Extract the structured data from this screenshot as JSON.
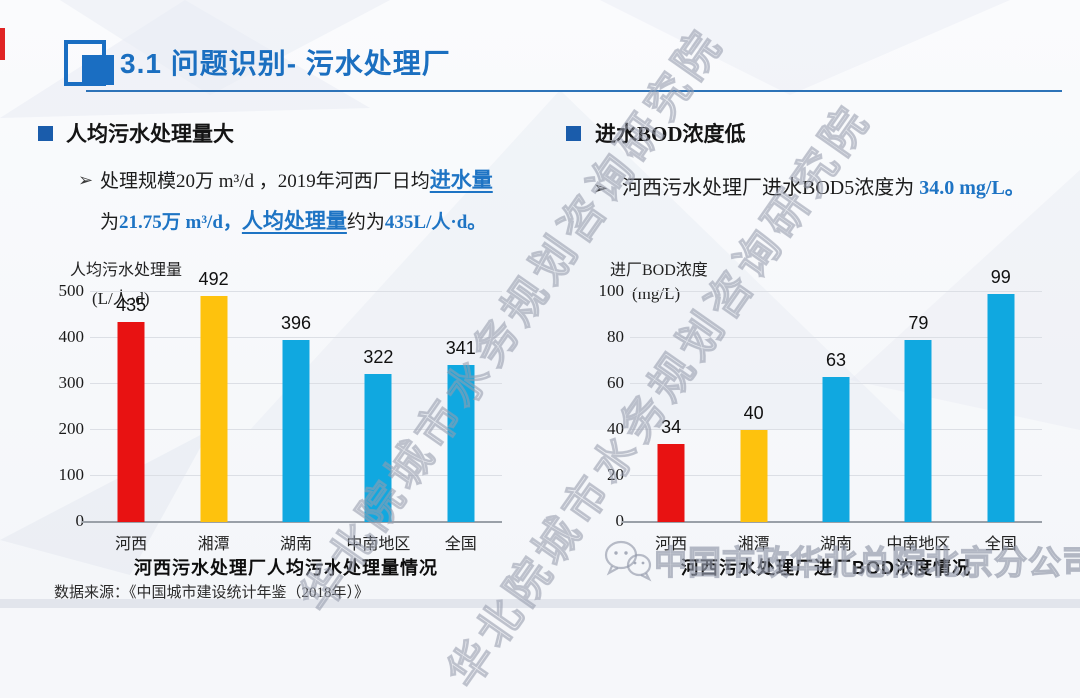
{
  "slide": {
    "title": "3.1 问题识别- 污水处理厂",
    "source_note": "数据来源：《中国城市建设统计年鉴（2018年）》"
  },
  "colors": {
    "accent_blue": "#1b6fc0",
    "highlight_blue": "#1e74c4",
    "bar_red": "#e81212",
    "bar_yellow": "#fec20d",
    "bar_cyan": "#10a8e0",
    "watermark_gray": "#979dad",
    "red_sliver": "#e02424"
  },
  "icons": {
    "title_block_icon": "blue-square-block-icon",
    "bullet_square_icon": "blue-square-bullet",
    "arrow_icon": "➢",
    "wechat_icon": "wechat-icon"
  },
  "sections": {
    "left": {
      "heading": "人均污水处理量大",
      "marker": "➢",
      "line1": [
        {
          "t": "处理规模20万 m³/d ，2019年河西厂日均",
          "s": "n"
        },
        {
          "t": "进水量",
          "s": "hlu"
        }
      ],
      "line2": [
        {
          "t": "为",
          "s": "n"
        },
        {
          "t": "21.75万 m³/d，",
          "s": "hl"
        },
        {
          "t": "人均处理量",
          "s": "hlu"
        },
        {
          "t": "约为",
          "s": "n"
        },
        {
          "t": "435L/人·d。",
          "s": "hl"
        }
      ]
    },
    "right": {
      "heading": "进水BOD浓度低",
      "marker": "➢",
      "line1": [
        {
          "t": "河西污水处理厂进水BOD5浓度为 ",
          "s": "n"
        },
        {
          "t": "34.0 mg/L。",
          "s": "hl"
        }
      ]
    }
  },
  "chart_data": [
    {
      "type": "bar",
      "title": "河西污水处理厂人均污水处理量情况",
      "ylabel": "人均污水处理量",
      "yunit": "(L/人·d)",
      "categories": [
        "河西",
        "湘潭",
        "湖南",
        "中南地区",
        "全国"
      ],
      "values": [
        435,
        492,
        396,
        322,
        341
      ],
      "bar_colors": [
        "#e81212",
        "#fec20d",
        "#10a8e0",
        "#10a8e0",
        "#10a8e0"
      ],
      "ylim": [
        0,
        500
      ],
      "ytick_step": 100,
      "grid": true,
      "legend": "none"
    },
    {
      "type": "bar",
      "title": "河西污水处理厂进厂BOD浓度情况",
      "ylabel": "进厂BOD浓度",
      "yunit": "(mg/L)",
      "categories": [
        "河西",
        "湘潭",
        "湖南",
        "中南地区",
        "全国"
      ],
      "values": [
        34,
        40,
        63,
        79,
        99
      ],
      "bar_colors": [
        "#e81212",
        "#fec20d",
        "#10a8e0",
        "#10a8e0",
        "#10a8e0"
      ],
      "ylim": [
        0,
        100
      ],
      "ytick_step": 20,
      "grid": true,
      "legend": "none"
    }
  ],
  "watermarks": {
    "diagonal_text": "华北院城市水务规划咨询研究院",
    "bottom_text": "中国市政华北总院北京分公司"
  }
}
